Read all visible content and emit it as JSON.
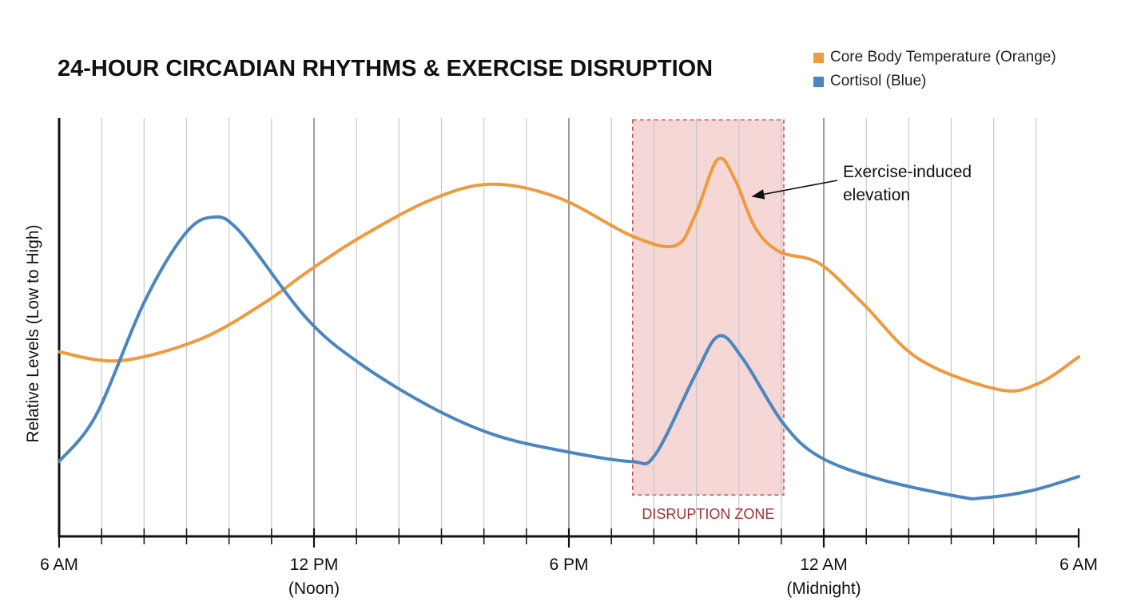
{
  "chart_data": {
    "type": "line",
    "title": "24-HOUR CIRCADIAN RHYTHMS & EXERCISE DISRUPTION",
    "xlabel": "",
    "ylabel": "Relative Levels (Low to High)",
    "xlim": [
      0,
      24
    ],
    "ylim": [
      0,
      100
    ],
    "x_ticks": [
      {
        "at": 0,
        "label": "6 AM",
        "sub": ""
      },
      {
        "at": 6,
        "label": "12 PM",
        "sub": "(Noon)"
      },
      {
        "at": 12,
        "label": "6 PM",
        "sub": ""
      },
      {
        "at": 18,
        "label": "12 AM",
        "sub": "(Midnight)"
      },
      {
        "at": 24,
        "label": "6 AM",
        "sub": ""
      }
    ],
    "grid": "vertical",
    "legend_position": "top-right",
    "series": [
      {
        "name": "Core Body Temperature (Orange)",
        "color": "#ee9a3e",
        "x": [
          0,
          1.43,
          3.31,
          4.81,
          5.81,
          7.07,
          8.76,
          10.18,
          11.77,
          13.47,
          14.5,
          14.97,
          15.5,
          15.91,
          16.38,
          16.95,
          17.89,
          18.92,
          20.24,
          22.12,
          23.06,
          24
        ],
        "y": [
          44.1,
          42.0,
          47.1,
          55.7,
          63.0,
          71.4,
          80.5,
          84.2,
          80.9,
          71.9,
          69.5,
          76.7,
          90.1,
          85.3,
          73.9,
          68.1,
          65.3,
          55.7,
          42.4,
          35.1,
          36.6,
          42.9
        ]
      },
      {
        "name": "Cortisol (Blue)",
        "color": "#4a86bf",
        "x": [
          0,
          0.87,
          1.99,
          2.93,
          3.59,
          4.25,
          5.81,
          7.07,
          8.76,
          10.27,
          11.87,
          13.47,
          14.03,
          14.97,
          15.53,
          16.1,
          17.04,
          17.89,
          19.3,
          21.18,
          21.74,
          22.87,
          24
        ],
        "y": [
          17.9,
          29.0,
          55.7,
          71.9,
          76.3,
          72.9,
          52.3,
          41.4,
          30.9,
          24.2,
          20.4,
          17.9,
          19.5,
          38.5,
          47.9,
          42.4,
          27.1,
          19.1,
          13.7,
          9.5,
          9.2,
          10.9,
          14.3
        ]
      }
    ],
    "annotations": [
      {
        "type": "region",
        "label": "DISRUPTION ZONE",
        "x": [
          13.5,
          17.06
        ],
        "y": [
          9.9,
          99.6
        ],
        "color": "#c0393b"
      },
      {
        "type": "arrow",
        "label_lines": [
          "Exercise-induced",
          "elevation"
        ],
        "points_to": {
          "x": 16.29,
          "y": 81.1
        }
      }
    ]
  }
}
